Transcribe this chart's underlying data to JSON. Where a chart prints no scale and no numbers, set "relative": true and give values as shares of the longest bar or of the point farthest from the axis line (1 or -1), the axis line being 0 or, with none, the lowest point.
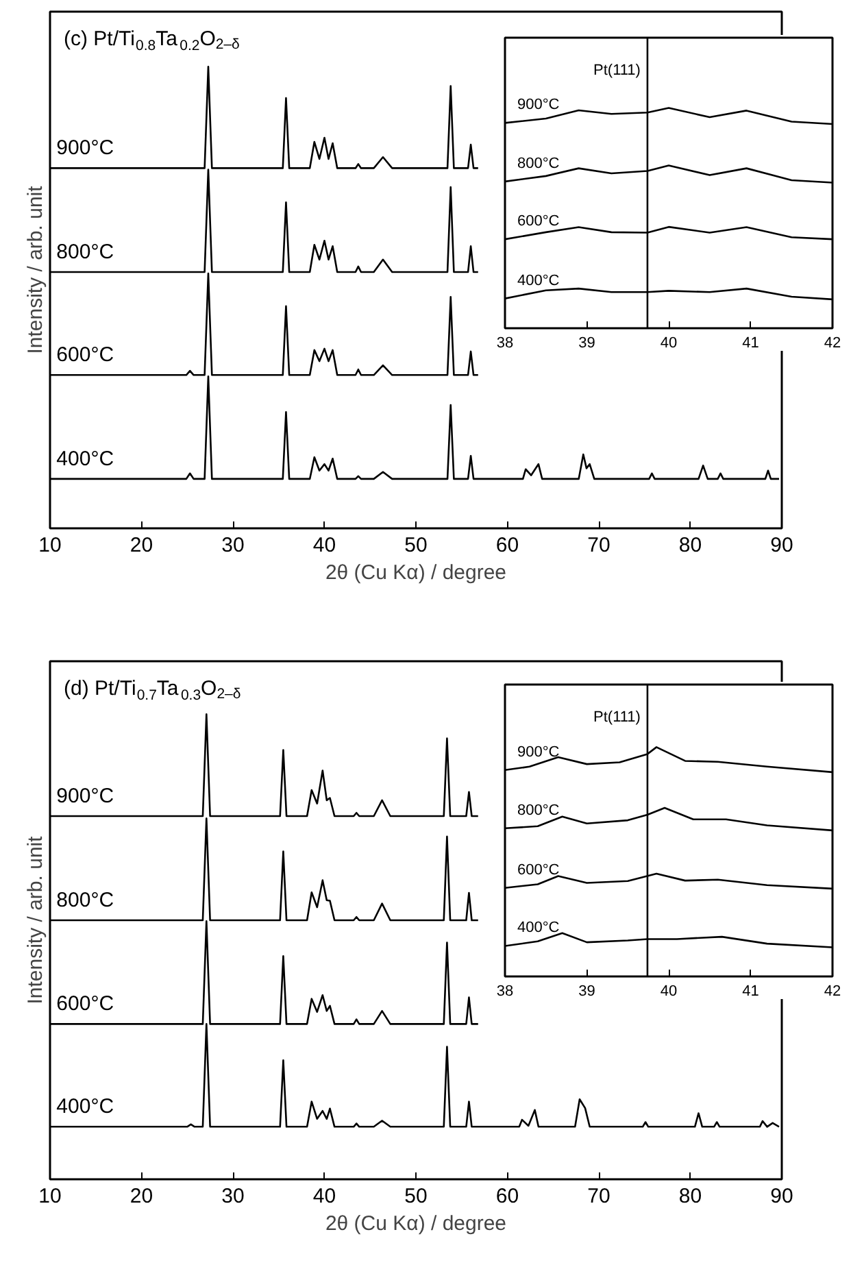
{
  "chart_data": [
    {
      "type": "line",
      "title": "(c) Pt/Ti$_{0.8}$Ta$_{0.2}$O$_{2–δ}$",
      "xlabel": "2θ (Cu Kα) / degree",
      "ylabel": "Intensity / arb. unit",
      "relative": true,
      "xlim": [
        10,
        90
      ],
      "xticks": [
        10,
        20,
        30,
        40,
        50,
        60,
        70,
        80,
        90
      ],
      "series": [
        {
          "name": "900°C",
          "color": "#000000",
          "x": [
            10,
            26.9,
            27.3,
            27.7,
            35.45,
            35.8,
            36.15,
            38.4,
            38.9,
            39.45,
            40.0,
            40.45,
            40.9,
            41.4,
            43.4,
            43.7,
            44.0,
            45.4,
            46.4,
            47.4,
            53.45,
            53.8,
            54.15,
            55.7,
            56.0,
            56.3,
            56.8
          ],
          "values": [
            0.78,
            0.78,
            1.0,
            0.78,
            0.78,
            0.932,
            0.78,
            0.78,
            0.837,
            0.8,
            0.846,
            0.8,
            0.834,
            0.78,
            0.78,
            0.789,
            0.78,
            0.78,
            0.804,
            0.78,
            0.78,
            0.958,
            0.78,
            0.78,
            0.831,
            0.78,
            0.78
          ]
        },
        {
          "name": "800°C",
          "color": "#000000",
          "x": [
            10,
            26.9,
            27.3,
            27.7,
            35.45,
            35.8,
            36.15,
            38.4,
            38.9,
            39.45,
            40.0,
            40.45,
            40.9,
            41.4,
            43.4,
            43.7,
            44.0,
            45.4,
            46.4,
            47.4,
            53.45,
            53.8,
            54.15,
            55.7,
            56.0,
            56.3,
            56.8
          ],
          "values": [
            0.555,
            0.555,
            0.777,
            0.555,
            0.555,
            0.706,
            0.555,
            0.555,
            0.614,
            0.582,
            0.623,
            0.582,
            0.611,
            0.555,
            0.555,
            0.567,
            0.555,
            0.555,
            0.582,
            0.555,
            0.555,
            0.739,
            0.555,
            0.555,
            0.611,
            0.555,
            0.555
          ]
        },
        {
          "name": "600°C",
          "color": "#000000",
          "x": [
            10,
            24.9,
            25.3,
            25.7,
            26.9,
            27.3,
            27.7,
            35.45,
            35.8,
            36.15,
            38.4,
            38.9,
            39.45,
            40.0,
            40.45,
            40.9,
            41.4,
            43.4,
            43.7,
            44.0,
            45.4,
            46.4,
            47.4,
            53.45,
            53.8,
            54.15,
            55.7,
            56.0,
            56.3,
            56.8
          ],
          "values": [
            0.332,
            0.332,
            0.341,
            0.332,
            0.332,
            0.552,
            0.332,
            0.332,
            0.481,
            0.332,
            0.332,
            0.386,
            0.362,
            0.389,
            0.362,
            0.386,
            0.332,
            0.332,
            0.344,
            0.332,
            0.332,
            0.353,
            0.332,
            0.332,
            0.501,
            0.332,
            0.332,
            0.383,
            0.332,
            0.332
          ]
        },
        {
          "name": "400°C",
          "color": "#000000",
          "x": [
            10,
            24.9,
            25.3,
            25.7,
            26.9,
            27.3,
            27.7,
            35.45,
            35.8,
            36.15,
            38.4,
            38.9,
            39.45,
            40.0,
            40.45,
            40.9,
            41.4,
            43.4,
            43.7,
            44.0,
            45.4,
            46.4,
            47.4,
            53.45,
            53.8,
            54.15,
            55.7,
            56.0,
            56.3,
            61.7,
            62.0,
            62.6,
            63.4,
            63.8,
            67.8,
            68.3,
            68.65,
            69.0,
            69.5,
            75.5,
            75.8,
            76.1,
            80.9,
            81.4,
            81.9,
            83.0,
            83.3,
            83.6,
            88.2,
            88.5,
            88.8,
            89.7
          ],
          "values": [
            0.107,
            0.107,
            0.119,
            0.107,
            0.107,
            0.329,
            0.107,
            0.107,
            0.252,
            0.107,
            0.107,
            0.154,
            0.125,
            0.139,
            0.125,
            0.151,
            0.107,
            0.107,
            0.113,
            0.107,
            0.107,
            0.122,
            0.107,
            0.107,
            0.267,
            0.107,
            0.107,
            0.157,
            0.107,
            0.107,
            0.128,
            0.115,
            0.139,
            0.107,
            0.107,
            0.16,
            0.13,
            0.139,
            0.107,
            0.107,
            0.119,
            0.107,
            0.107,
            0.136,
            0.107,
            0.107,
            0.119,
            0.107,
            0.107,
            0.125,
            0.107,
            0.107
          ]
        }
      ]
    },
    {
      "type": "line",
      "relative": true,
      "xlim": [
        38,
        42
      ],
      "xticks": [
        38,
        39,
        40,
        41,
        42
      ],
      "x": [
        38,
        38.5,
        38.9,
        39.3,
        39.74,
        40.0,
        40.5,
        40.95,
        41.5,
        42
      ],
      "ref_lines": [
        {
          "axis": "x",
          "value": 39.74,
          "label": "Pt(111)"
        }
      ],
      "series": [
        {
          "name": "900°C",
          "color": "#000000",
          "values": [
            0.932,
            0.952,
            0.989,
            0.973,
            0.979,
            1.0,
            0.958,
            0.988,
            0.938,
            0.927
          ]
        },
        {
          "name": "800°C",
          "color": "#000000",
          "values": [
            0.666,
            0.691,
            0.726,
            0.703,
            0.714,
            0.739,
            0.695,
            0.726,
            0.672,
            0.661
          ]
        },
        {
          "name": "600°C",
          "color": "#000000",
          "values": [
            0.404,
            0.436,
            0.459,
            0.436,
            0.434,
            0.46,
            0.434,
            0.459,
            0.413,
            0.404
          ]
        },
        {
          "name": "400°C",
          "color": "#000000",
          "values": [
            0.135,
            0.172,
            0.18,
            0.164,
            0.164,
            0.17,
            0.164,
            0.18,
            0.143,
            0.131
          ]
        }
      ]
    },
    {
      "type": "line",
      "title": "(d) Pt/Ti$_{0.7}$Ta$_{0.3}$O$_{2–δ}$",
      "xlabel": "2θ (Cu Kα) / degree",
      "ylabel": "Intensity / arb. unit",
      "relative": true,
      "xlim": [
        10,
        90
      ],
      "xticks": [
        10,
        20,
        30,
        40,
        50,
        60,
        70,
        80,
        90
      ],
      "series": [
        {
          "name": "900°C",
          "color": "#000000",
          "x": [
            10,
            26.7,
            27.1,
            27.5,
            35.15,
            35.5,
            35.85,
            38.1,
            38.6,
            39.2,
            39.8,
            40.25,
            40.6,
            41.1,
            43.2,
            43.5,
            43.8,
            45.4,
            46.3,
            47.2,
            53.05,
            53.4,
            53.75,
            55.5,
            55.8,
            56.1,
            56.8
          ],
          "values": [
            0.781,
            0.781,
            1.0,
            0.781,
            0.781,
            0.923,
            0.781,
            0.781,
            0.837,
            0.808,
            0.879,
            0.815,
            0.82,
            0.781,
            0.781,
            0.788,
            0.781,
            0.781,
            0.815,
            0.781,
            0.781,
            0.948,
            0.781,
            0.781,
            0.833,
            0.781,
            0.781
          ]
        },
        {
          "name": "800°C",
          "color": "#000000",
          "x": [
            10,
            26.7,
            27.1,
            27.5,
            35.15,
            35.5,
            35.85,
            38.1,
            38.6,
            39.2,
            39.8,
            40.25,
            40.6,
            41.1,
            43.2,
            43.5,
            43.8,
            45.4,
            46.3,
            47.2,
            53.05,
            53.4,
            53.75,
            55.5,
            55.8,
            56.1,
            56.8
          ],
          "values": [
            0.557,
            0.557,
            0.776,
            0.557,
            0.557,
            0.705,
            0.557,
            0.557,
            0.617,
            0.585,
            0.643,
            0.6,
            0.599,
            0.557,
            0.557,
            0.564,
            0.557,
            0.557,
            0.593,
            0.557,
            0.557,
            0.737,
            0.557,
            0.557,
            0.616,
            0.557,
            0.557
          ]
        },
        {
          "name": "600°C",
          "color": "#000000",
          "x": [
            10,
            26.7,
            27.1,
            27.5,
            35.15,
            35.5,
            35.85,
            38.1,
            38.6,
            39.2,
            39.8,
            40.25,
            40.6,
            41.1,
            43.2,
            43.5,
            43.8,
            45.4,
            46.3,
            47.2,
            53.05,
            53.4,
            53.75,
            55.5,
            55.8,
            56.1,
            56.8
          ],
          "values": [
            0.334,
            0.334,
            0.555,
            0.334,
            0.334,
            0.48,
            0.334,
            0.334,
            0.388,
            0.36,
            0.396,
            0.362,
            0.373,
            0.334,
            0.334,
            0.344,
            0.334,
            0.334,
            0.362,
            0.334,
            0.334,
            0.509,
            0.334,
            0.334,
            0.391,
            0.334,
            0.334
          ]
        },
        {
          "name": "400°C",
          "color": "#000000",
          "x": [
            10,
            25.0,
            25.4,
            25.8,
            26.7,
            27.1,
            27.5,
            35.15,
            35.5,
            35.85,
            38.1,
            38.6,
            39.2,
            39.8,
            40.25,
            40.6,
            41.1,
            43.2,
            43.5,
            43.8,
            45.4,
            46.3,
            47.2,
            53.05,
            53.4,
            53.75,
            55.5,
            55.8,
            56.1,
            61.3,
            61.6,
            62.3,
            63.0,
            63.4,
            67.4,
            67.9,
            68.5,
            69.0,
            74.8,
            75.1,
            75.4,
            80.5,
            80.9,
            81.3,
            82.6,
            82.9,
            83.2,
            87.6,
            87.9,
            88.4,
            89.0,
            89.7
          ],
          "values": [
            0.113,
            0.113,
            0.118,
            0.113,
            0.113,
            0.334,
            0.113,
            0.113,
            0.256,
            0.113,
            0.113,
            0.167,
            0.13,
            0.147,
            0.13,
            0.152,
            0.113,
            0.113,
            0.12,
            0.113,
            0.113,
            0.126,
            0.113,
            0.113,
            0.285,
            0.113,
            0.113,
            0.167,
            0.113,
            0.113,
            0.128,
            0.115,
            0.149,
            0.113,
            0.113,
            0.172,
            0.153,
            0.113,
            0.113,
            0.123,
            0.113,
            0.113,
            0.142,
            0.113,
            0.113,
            0.123,
            0.113,
            0.113,
            0.125,
            0.113,
            0.121,
            0.113
          ]
        }
      ]
    },
    {
      "type": "line",
      "relative": true,
      "xlim": [
        38,
        42
      ],
      "xticks": [
        38,
        39,
        40,
        41,
        42
      ],
      "ref_lines": [
        {
          "axis": "x",
          "value": 39.74,
          "label": "Pt(111)"
        }
      ],
      "series": [
        {
          "name": "900°C",
          "color": "#000000",
          "x": [
            38,
            38.3,
            38.65,
            39.0,
            39.4,
            39.74,
            39.85,
            40.2,
            40.6,
            41.2,
            42
          ],
          "values": [
            0.9,
            0.915,
            0.956,
            0.926,
            0.934,
            0.97,
            1.0,
            0.94,
            0.936,
            0.915,
            0.891
          ]
        },
        {
          "name": "800°C",
          "color": "#000000",
          "x": [
            38,
            38.4,
            38.7,
            39.0,
            39.5,
            39.74,
            39.95,
            40.3,
            40.7,
            41.2,
            42
          ],
          "values": [
            0.646,
            0.655,
            0.697,
            0.667,
            0.681,
            0.705,
            0.735,
            0.685,
            0.685,
            0.659,
            0.637
          ]
        },
        {
          "name": "600°C",
          "color": "#000000",
          "x": [
            38,
            38.4,
            38.65,
            39.0,
            39.5,
            39.85,
            40.2,
            40.6,
            41.2,
            42
          ],
          "values": [
            0.386,
            0.402,
            0.438,
            0.408,
            0.416,
            0.448,
            0.418,
            0.422,
            0.398,
            0.383
          ]
        },
        {
          "name": "400°C",
          "color": "#000000",
          "x": [
            38,
            38.4,
            38.7,
            39.0,
            39.5,
            39.74,
            40.1,
            40.65,
            41.2,
            42
          ],
          "values": [
            0.133,
            0.153,
            0.189,
            0.149,
            0.157,
            0.163,
            0.163,
            0.173,
            0.143,
            0.127
          ]
        }
      ]
    }
  ]
}
